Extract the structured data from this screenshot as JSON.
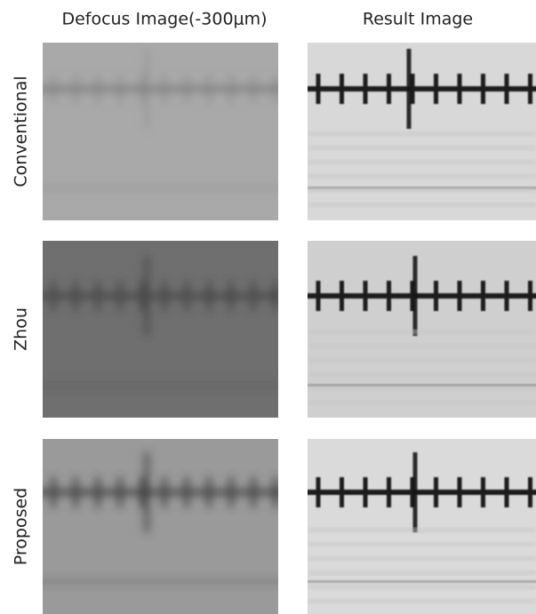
{
  "header": {
    "columns": [
      "Defocus Image(-300μm)",
      "Result Image"
    ]
  },
  "rows": [
    "Conventional",
    "Zhou",
    "Proposed"
  ]
}
